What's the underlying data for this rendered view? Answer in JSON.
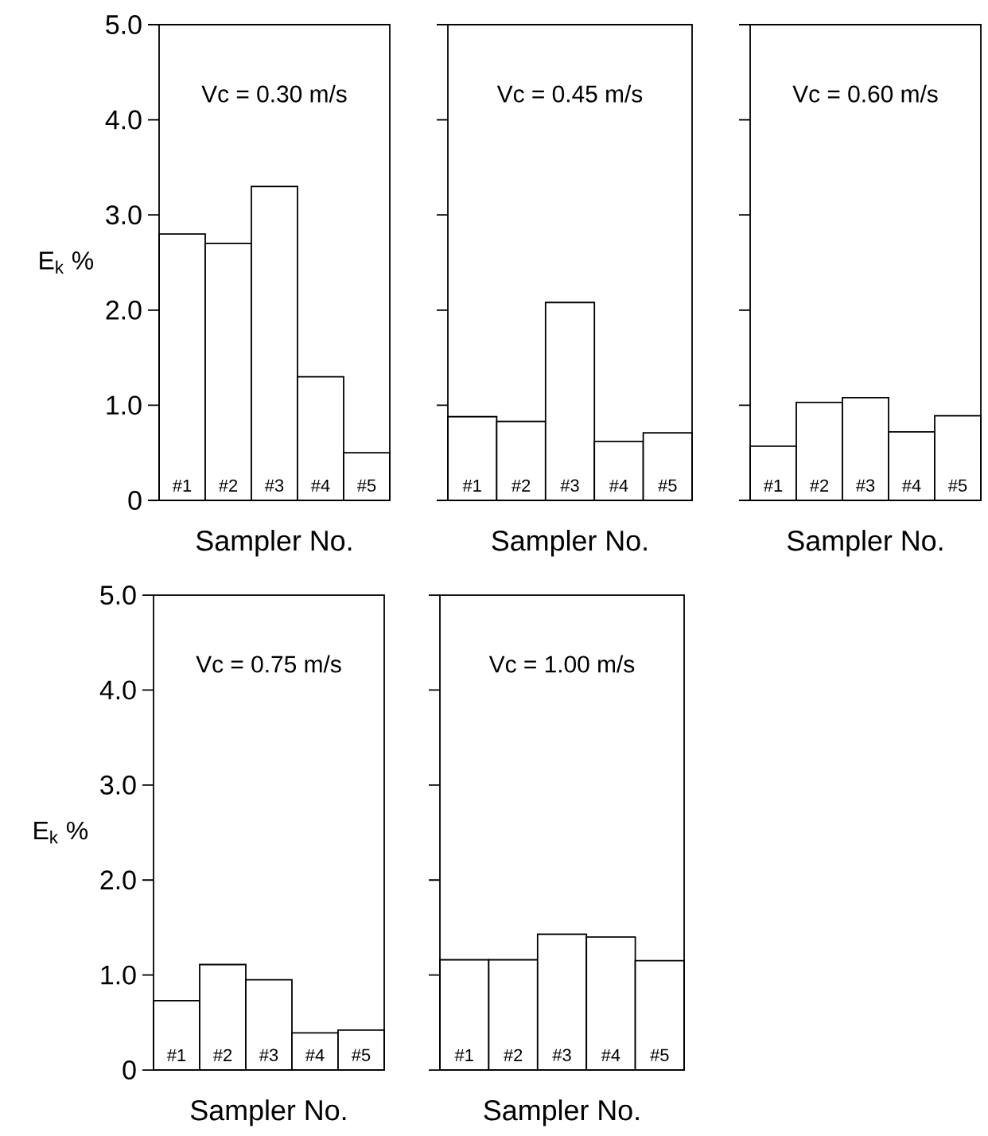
{
  "chart_data": [
    {
      "type": "bar",
      "categories": [
        "#1",
        "#2",
        "#3",
        "#4",
        "#5"
      ],
      "values": [
        2.8,
        2.7,
        3.3,
        1.3,
        0.5
      ],
      "color": "#ffffff",
      "xlabel": "Sampler No.",
      "ylabel": "E$_{k}$ %",
      "annotations": [
        "Vc = 0.30 m/s"
      ],
      "ylim": [
        0,
        5
      ],
      "yticks": [
        0,
        {
          "value": 1,
          "label": "1.0"
        },
        {
          "value": 2,
          "label": "2.0"
        },
        {
          "value": 3,
          "label": "3.0"
        },
        {
          "value": 4,
          "label": "4.0"
        },
        {
          "value": 5,
          "label": "5.0"
        }
      ]
    },
    {
      "type": "bar",
      "categories": [
        "#1",
        "#2",
        "#3",
        "#4",
        "#5"
      ],
      "values": [
        0.88,
        0.83,
        2.08,
        0.62,
        0.71
      ],
      "color": "#ffffff",
      "xlabel": "Sampler No.",
      "annotations": [
        "Vc = 0.45 m/s"
      ],
      "ylim": [
        0,
        5
      ],
      "yticks": [
        0,
        1,
        2,
        3,
        4,
        5
      ],
      "tick_labels": "x"
    },
    {
      "type": "bar",
      "categories": [
        "#1",
        "#2",
        "#3",
        "#4",
        "#5"
      ],
      "values": [
        0.57,
        1.03,
        1.08,
        0.72,
        0.89
      ],
      "color": "#ffffff",
      "xlabel": "Sampler No.",
      "annotations": [
        "Vc = 0.60 m/s"
      ],
      "ylim": [
        0,
        5
      ],
      "yticks": [
        0,
        1,
        2,
        3,
        4,
        5
      ],
      "tick_labels": "x"
    },
    {
      "type": "bar",
      "categories": [
        "#1",
        "#2",
        "#3",
        "#4",
        "#5"
      ],
      "values": [
        0.73,
        1.11,
        0.95,
        0.39,
        0.42
      ],
      "color": "#ffffff",
      "xlabel": "Sampler No.",
      "ylabel": "E$_{k}$ %",
      "annotations": [
        "Vc = 0.75 m/s"
      ],
      "ylim": [
        0,
        5
      ],
      "yticks": [
        0,
        {
          "value": 1,
          "label": "1.0"
        },
        {
          "value": 2,
          "label": "2.0"
        },
        {
          "value": 3,
          "label": "3.0"
        },
        {
          "value": 4,
          "label": "4.0"
        },
        {
          "value": 5,
          "label": "5.0"
        }
      ]
    },
    {
      "type": "bar",
      "categories": [
        "#1",
        "#2",
        "#3",
        "#4",
        "#5"
      ],
      "values": [
        1.16,
        1.16,
        1.43,
        1.4,
        1.15
      ],
      "color": "#ffffff",
      "xlabel": "Sampler No.",
      "annotations": [
        "Vc = 1.00 m/s"
      ],
      "ylim": [
        0,
        5
      ],
      "yticks": [
        0,
        1,
        2,
        3,
        4,
        5
      ],
      "tick_labels": "x"
    }
  ]
}
